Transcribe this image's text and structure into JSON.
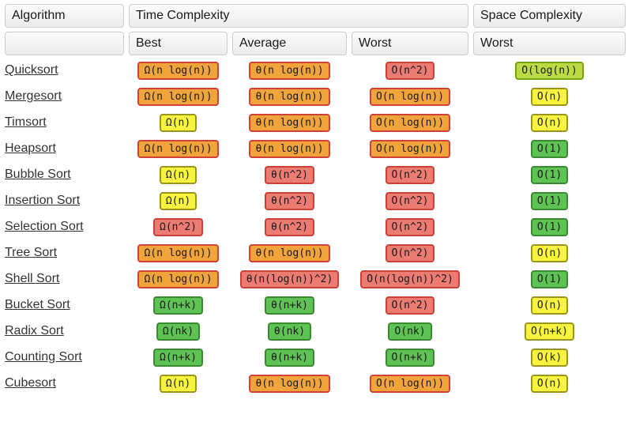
{
  "header": {
    "algorithm": "Algorithm",
    "time_complexity": "Time Complexity",
    "space_complexity": "Space Complexity",
    "best": "Best",
    "average": "Average",
    "worst": "Worst",
    "space_worst": "Worst"
  },
  "colors": {
    "orange": {
      "bg": "#F1A33C",
      "border": "#CE4238"
    },
    "red": {
      "bg": "#EC7B72",
      "border": "#C84237"
    },
    "yellow": {
      "bg": "#F7F33E",
      "border": "#99941C"
    },
    "yellowgreen": {
      "bg": "#BBDB44",
      "border": "#79A011"
    },
    "green": {
      "bg": "#5FC254",
      "border": "#3B8A31"
    },
    "badge_text": "#1A1A1A",
    "link": "#333333"
  },
  "rows": [
    {
      "name": "Quicksort",
      "best": {
        "text": "Ω(n log(n))",
        "tone": "orange"
      },
      "average": {
        "text": "θ(n log(n))",
        "tone": "orange"
      },
      "worst": {
        "text": "O(n^2)",
        "tone": "red"
      },
      "space": {
        "text": "O(log(n))",
        "tone": "yellowgreen"
      }
    },
    {
      "name": "Mergesort",
      "best": {
        "text": "Ω(n log(n))",
        "tone": "orange"
      },
      "average": {
        "text": "θ(n log(n))",
        "tone": "orange"
      },
      "worst": {
        "text": "O(n log(n))",
        "tone": "orange"
      },
      "space": {
        "text": "O(n)",
        "tone": "yellow"
      }
    },
    {
      "name": "Timsort",
      "best": {
        "text": "Ω(n)",
        "tone": "yellow"
      },
      "average": {
        "text": "θ(n log(n))",
        "tone": "orange"
      },
      "worst": {
        "text": "O(n log(n))",
        "tone": "orange"
      },
      "space": {
        "text": "O(n)",
        "tone": "yellow"
      }
    },
    {
      "name": "Heapsort",
      "best": {
        "text": "Ω(n log(n))",
        "tone": "orange"
      },
      "average": {
        "text": "θ(n log(n))",
        "tone": "orange"
      },
      "worst": {
        "text": "O(n log(n))",
        "tone": "orange"
      },
      "space": {
        "text": "O(1)",
        "tone": "green"
      }
    },
    {
      "name": "Bubble Sort",
      "best": {
        "text": "Ω(n)",
        "tone": "yellow"
      },
      "average": {
        "text": "θ(n^2)",
        "tone": "red"
      },
      "worst": {
        "text": "O(n^2)",
        "tone": "red"
      },
      "space": {
        "text": "O(1)",
        "tone": "green"
      }
    },
    {
      "name": "Insertion Sort",
      "best": {
        "text": "Ω(n)",
        "tone": "yellow"
      },
      "average": {
        "text": "θ(n^2)",
        "tone": "red"
      },
      "worst": {
        "text": "O(n^2)",
        "tone": "red"
      },
      "space": {
        "text": "O(1)",
        "tone": "green"
      }
    },
    {
      "name": "Selection Sort",
      "best": {
        "text": "Ω(n^2)",
        "tone": "red"
      },
      "average": {
        "text": "θ(n^2)",
        "tone": "red"
      },
      "worst": {
        "text": "O(n^2)",
        "tone": "red"
      },
      "space": {
        "text": "O(1)",
        "tone": "green"
      }
    },
    {
      "name": "Tree Sort",
      "best": {
        "text": "Ω(n log(n))",
        "tone": "orange"
      },
      "average": {
        "text": "θ(n log(n))",
        "tone": "orange"
      },
      "worst": {
        "text": "O(n^2)",
        "tone": "red"
      },
      "space": {
        "text": "O(n)",
        "tone": "yellow"
      }
    },
    {
      "name": "Shell Sort",
      "best": {
        "text": "Ω(n log(n))",
        "tone": "orange"
      },
      "average": {
        "text": "θ(n(log(n))^2)",
        "tone": "red"
      },
      "worst": {
        "text": "O(n(log(n))^2)",
        "tone": "red"
      },
      "space": {
        "text": "O(1)",
        "tone": "green"
      }
    },
    {
      "name": "Bucket Sort",
      "best": {
        "text": "Ω(n+k)",
        "tone": "green"
      },
      "average": {
        "text": "θ(n+k)",
        "tone": "green"
      },
      "worst": {
        "text": "O(n^2)",
        "tone": "red"
      },
      "space": {
        "text": "O(n)",
        "tone": "yellow"
      }
    },
    {
      "name": "Radix Sort",
      "best": {
        "text": "Ω(nk)",
        "tone": "green"
      },
      "average": {
        "text": "θ(nk)",
        "tone": "green"
      },
      "worst": {
        "text": "O(nk)",
        "tone": "green"
      },
      "space": {
        "text": "O(n+k)",
        "tone": "yellow"
      }
    },
    {
      "name": "Counting Sort",
      "best": {
        "text": "Ω(n+k)",
        "tone": "green"
      },
      "average": {
        "text": "θ(n+k)",
        "tone": "green"
      },
      "worst": {
        "text": "O(n+k)",
        "tone": "green"
      },
      "space": {
        "text": "O(k)",
        "tone": "yellow"
      }
    },
    {
      "name": "Cubesort",
      "best": {
        "text": "Ω(n)",
        "tone": "yellow"
      },
      "average": {
        "text": "θ(n log(n))",
        "tone": "orange"
      },
      "worst": {
        "text": "O(n log(n))",
        "tone": "orange"
      },
      "space": {
        "text": "O(n)",
        "tone": "yellow"
      }
    }
  ]
}
